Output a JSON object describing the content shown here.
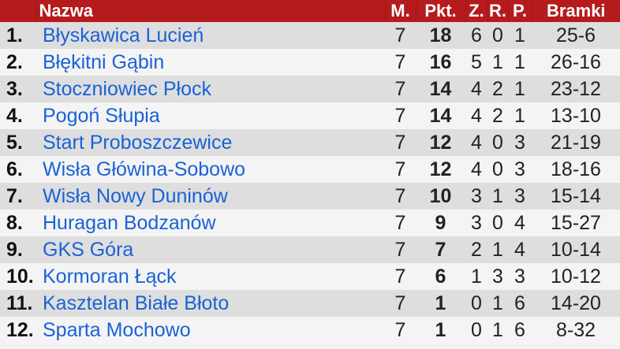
{
  "header": {
    "pos": "",
    "name": "Nazwa",
    "m": "M.",
    "pts": "Pkt.",
    "w": "Z.",
    "d": "R.",
    "l": "P.",
    "goals": "Bramki"
  },
  "colors": {
    "header_bg": "#b51b1c",
    "link": "#1a62d6"
  },
  "rows": [
    {
      "pos": "1.",
      "name": "Błyskawica Lucień",
      "m": "7",
      "pts": "18",
      "w": "6",
      "d": "0",
      "l": "1",
      "goals": "25-6"
    },
    {
      "pos": "2.",
      "name": "Błękitni Gąbin",
      "m": "7",
      "pts": "16",
      "w": "5",
      "d": "1",
      "l": "1",
      "goals": "26-16"
    },
    {
      "pos": "3.",
      "name": "Stoczniowiec Płock",
      "m": "7",
      "pts": "14",
      "w": "4",
      "d": "2",
      "l": "1",
      "goals": "23-12"
    },
    {
      "pos": "4.",
      "name": "Pogoń Słupia",
      "m": "7",
      "pts": "14",
      "w": "4",
      "d": "2",
      "l": "1",
      "goals": "13-10"
    },
    {
      "pos": "5.",
      "name": "Start Proboszczewice",
      "m": "7",
      "pts": "12",
      "w": "4",
      "d": "0",
      "l": "3",
      "goals": "21-19"
    },
    {
      "pos": "6.",
      "name": "Wisła Główina-Sobowo",
      "m": "7",
      "pts": "12",
      "w": "4",
      "d": "0",
      "l": "3",
      "goals": "18-16"
    },
    {
      "pos": "7.",
      "name": "Wisła Nowy Duninów",
      "m": "7",
      "pts": "10",
      "w": "3",
      "d": "1",
      "l": "3",
      "goals": "15-14"
    },
    {
      "pos": "8.",
      "name": "Huragan Bodzanów",
      "m": "7",
      "pts": "9",
      "w": "3",
      "d": "0",
      "l": "4",
      "goals": "15-27"
    },
    {
      "pos": "9.",
      "name": "GKS Góra",
      "m": "7",
      "pts": "7",
      "w": "2",
      "d": "1",
      "l": "4",
      "goals": "10-14"
    },
    {
      "pos": "10.",
      "name": "Kormoran Łąck",
      "m": "7",
      "pts": "6",
      "w": "1",
      "d": "3",
      "l": "3",
      "goals": "10-12"
    },
    {
      "pos": "11.",
      "name": "Kasztelan Białe Błoto",
      "m": "7",
      "pts": "1",
      "w": "0",
      "d": "1",
      "l": "6",
      "goals": "14-20"
    },
    {
      "pos": "12.",
      "name": "Sparta Mochowo",
      "m": "7",
      "pts": "1",
      "w": "0",
      "d": "1",
      "l": "6",
      "goals": "8-32"
    }
  ]
}
